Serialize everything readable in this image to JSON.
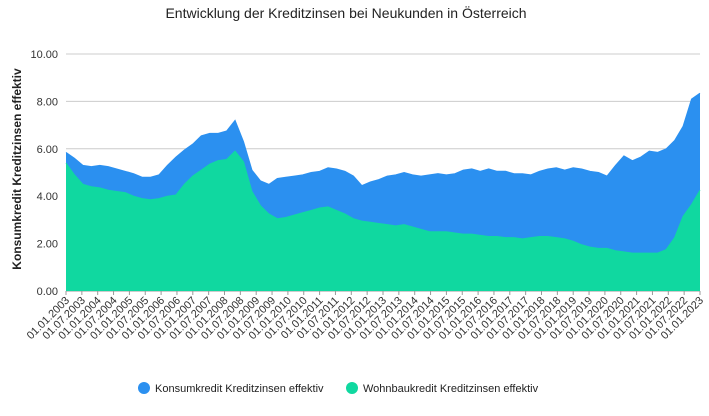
{
  "chart_data": {
    "type": "area",
    "title": "Entwicklung der Kreditzinsen bei Neukunden in Österreich",
    "ylabel": "Konsumkredit Kreditzinsen effektiv",
    "xlabel": "",
    "ylim": [
      0,
      10
    ],
    "yticks": [
      "0.00",
      "2.00",
      "4.00",
      "6.00",
      "8.00",
      "10.00"
    ],
    "xticks": [
      "01.01.2003",
      "01.07.2003",
      "01.01.2004",
      "01.07.2004",
      "01.01.2005",
      "01.07.2005",
      "01.01.2006",
      "01.07.2006",
      "01.01.2007",
      "01.07.2007",
      "01.01.2008",
      "01.07.2008",
      "01.01.2009",
      "01.07.2009",
      "01.01.2010",
      "01.07.2010",
      "01.01.2011",
      "01.07.2011",
      "01.01.2012",
      "01.07.2012",
      "01.01.2013",
      "01.07.2013",
      "01.01.2014",
      "01.07.2014",
      "01.01.2015",
      "01.07.2015",
      "01.01.2016",
      "01.07.2016",
      "01.01.2017",
      "01.07.2017",
      "01.01.2018",
      "01.07.2018",
      "01.01.2019",
      "01.07.2019",
      "01.01.2020",
      "01.07.2020",
      "01.01.2021",
      "01.07.2021",
      "01.01.2022",
      "01.07.2022",
      "01.01.2023"
    ],
    "grid": true,
    "legend_position": "bottom",
    "series": [
      {
        "name": "Konsumkredit Kreditzinsen effektiv",
        "color": "#2b90f0",
        "values": [
          5.85,
          5.6,
          5.3,
          5.25,
          5.3,
          5.25,
          5.15,
          5.05,
          4.95,
          4.8,
          4.8,
          4.9,
          5.3,
          5.65,
          5.95,
          6.2,
          6.55,
          6.65,
          6.65,
          6.75,
          7.2,
          6.3,
          5.1,
          4.65,
          4.5,
          4.75,
          4.8,
          4.85,
          4.9,
          5.0,
          5.05,
          5.2,
          5.15,
          5.05,
          4.85,
          4.45,
          4.6,
          4.7,
          4.85,
          4.9,
          5.0,
          4.9,
          4.85,
          4.9,
          4.95,
          4.9,
          4.95,
          5.1,
          5.15,
          5.05,
          5.15,
          5.05,
          5.05,
          4.95,
          4.95,
          4.9,
          5.05,
          5.15,
          5.2,
          5.1,
          5.2,
          5.15,
          5.05,
          5.0,
          4.85,
          5.3,
          5.7,
          5.5,
          5.65,
          5.9,
          5.85,
          6.0,
          6.35,
          6.95,
          8.1,
          8.35
        ]
      },
      {
        "name": "Wohnbaukredit Kreditzinsen effektiv",
        "color": "#10d8a0",
        "values": [
          5.4,
          4.9,
          4.5,
          4.4,
          4.35,
          4.25,
          4.2,
          4.15,
          4.0,
          3.9,
          3.85,
          3.9,
          4.0,
          4.05,
          4.5,
          4.85,
          5.1,
          5.35,
          5.5,
          5.55,
          5.9,
          5.45,
          4.2,
          3.6,
          3.25,
          3.05,
          3.1,
          3.2,
          3.3,
          3.4,
          3.5,
          3.55,
          3.4,
          3.25,
          3.05,
          2.95,
          2.9,
          2.85,
          2.8,
          2.75,
          2.8,
          2.7,
          2.6,
          2.5,
          2.5,
          2.5,
          2.45,
          2.4,
          2.4,
          2.35,
          2.3,
          2.3,
          2.25,
          2.25,
          2.2,
          2.25,
          2.3,
          2.3,
          2.25,
          2.2,
          2.1,
          1.95,
          1.85,
          1.8,
          1.8,
          1.7,
          1.65,
          1.6,
          1.6,
          1.6,
          1.6,
          1.75,
          2.25,
          3.15,
          3.65,
          4.25
        ]
      }
    ]
  }
}
